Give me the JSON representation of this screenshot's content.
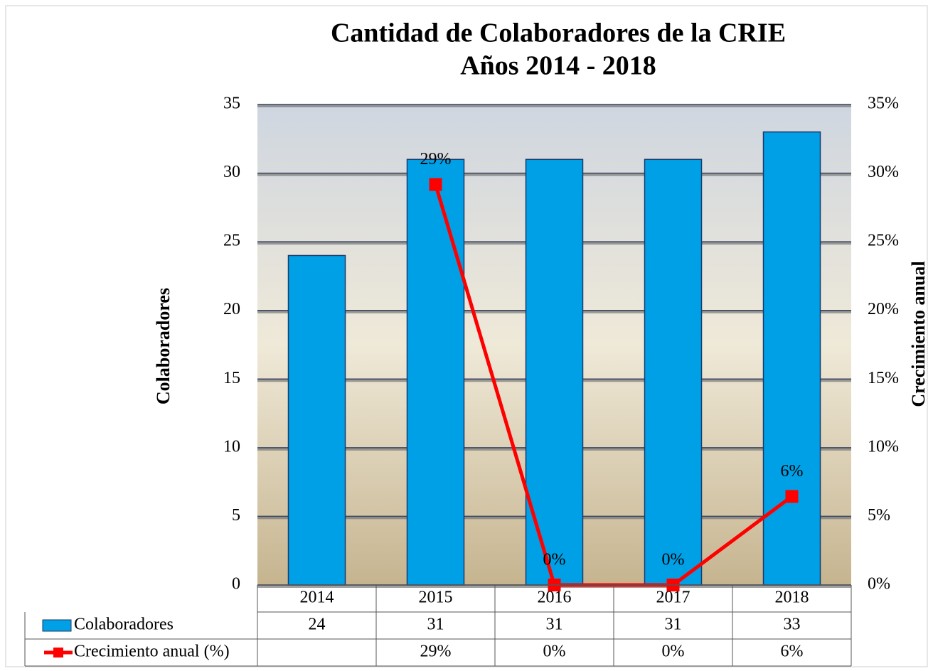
{
  "chart_data": {
    "type": "bar_line",
    "title": "Cantidad de Colaboradores de la CRIE",
    "subtitle": "Años 2014 - 2018",
    "y_label": "Colaboradores",
    "y2_label": "Crecimiento anual",
    "categories": [
      "2014",
      "2015",
      "2016",
      "2017",
      "2018"
    ],
    "series": [
      {
        "name": "Colaboradores",
        "type": "bar",
        "color": "#00a0e6",
        "values": [
          24,
          31,
          31,
          31,
          33
        ]
      },
      {
        "name": "Crecimiento anual (%)",
        "type": "line",
        "axis": "y2",
        "color": "#ff0000",
        "values": [
          null,
          29.17,
          0,
          0,
          6.45
        ],
        "value_labels": [
          null,
          "29%",
          "0%",
          "0%",
          "6%"
        ]
      }
    ],
    "ylim": [
      0,
      35
    ],
    "yticks": [
      0,
      5,
      10,
      15,
      20,
      25,
      30,
      35
    ],
    "y2lim": [
      0,
      35
    ],
    "y2ticks": [
      {
        "value": 0,
        "label": "0%"
      },
      {
        "value": 5,
        "label": "5%"
      },
      {
        "value": 10,
        "label": "10%"
      },
      {
        "value": 15,
        "label": "15%"
      },
      {
        "value": 20,
        "label": "20%"
      },
      {
        "value": 25,
        "label": "25%"
      },
      {
        "value": 30,
        "label": "30%"
      },
      {
        "value": 35,
        "label": "35%"
      }
    ],
    "grid": true,
    "data_table": true
  }
}
